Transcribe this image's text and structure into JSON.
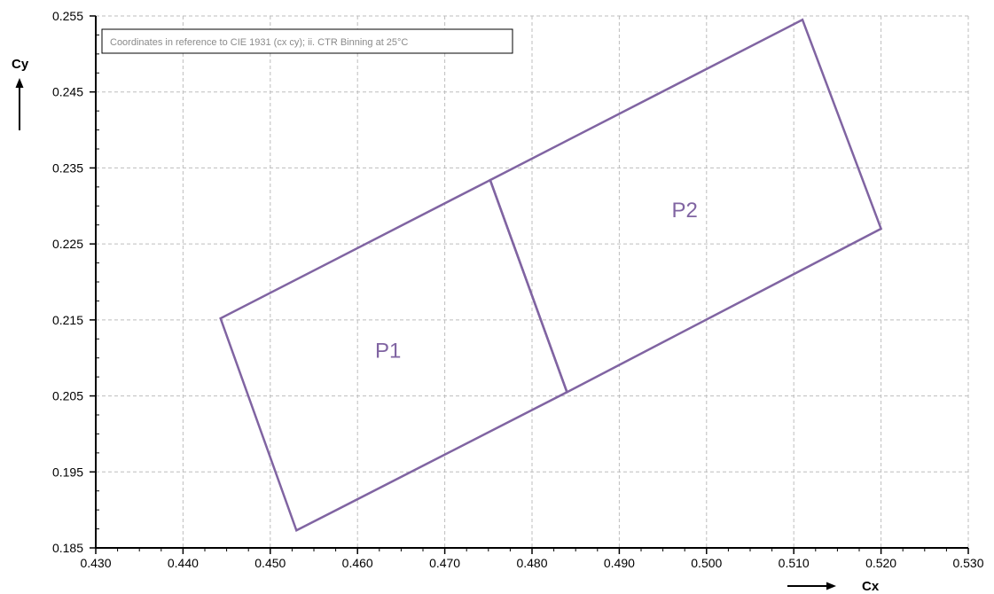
{
  "chart_data": {
    "type": "line",
    "xlabel": "Cx",
    "ylabel": "Cy",
    "xlim": [
      0.43,
      0.53
    ],
    "ylim": [
      0.185,
      0.255
    ],
    "x_ticks": [
      "0.430",
      "0.440",
      "0.450",
      "0.460",
      "0.470",
      "0.480",
      "0.490",
      "0.500",
      "0.510",
      "0.520",
      "0.530"
    ],
    "y_ticks": [
      "0.185",
      "0.195",
      "0.205",
      "0.215",
      "0.225",
      "0.235",
      "0.245",
      "0.255"
    ],
    "grid": true,
    "annotation": "Coordinates in reference to CIE 1931 (cx cy); ii. CTR Binning at 25°C",
    "color": "#8064a2",
    "regions": [
      {
        "name": "P1",
        "points": [
          [
            0.4443,
            0.2152
          ],
          [
            0.4752,
            0.2334
          ],
          [
            0.484,
            0.2055
          ],
          [
            0.453,
            0.1873
          ]
        ]
      },
      {
        "name": "P2",
        "points": [
          [
            0.4752,
            0.2334
          ],
          [
            0.511,
            0.2545
          ],
          [
            0.52,
            0.227
          ],
          [
            0.484,
            0.2055
          ]
        ]
      }
    ],
    "region_labels": [
      {
        "text": "P1",
        "x": 0.4635,
        "y": 0.21
      },
      {
        "text": "P2",
        "x": 0.4975,
        "y": 0.2285
      }
    ]
  }
}
